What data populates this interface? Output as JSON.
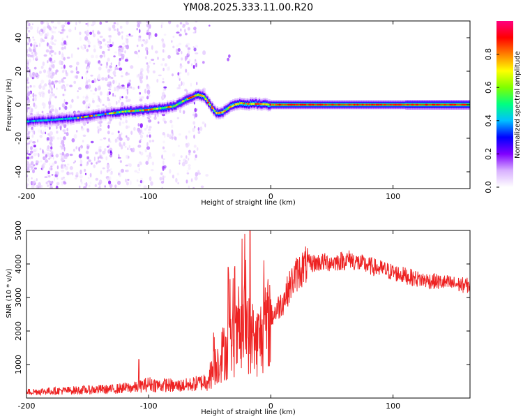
{
  "title": "YM08.2025.333.11.00.R20",
  "chart_data": [
    {
      "type": "heatmap",
      "name": "spectrogram",
      "xlabel": "Height of straight line (km)",
      "ylabel": "Frequency (Hz)",
      "xlim": [
        -200,
        163
      ],
      "ylim": [
        -50,
        50
      ],
      "xticks": [
        -200,
        -100,
        0,
        100
      ],
      "xtick_labels": [
        "-200",
        "-100",
        "0",
        "100"
      ],
      "yticks": [
        -40,
        -20,
        0,
        20,
        40
      ],
      "ytick_labels": [
        "-40",
        "-20",
        "0",
        "20",
        "40"
      ],
      "ridge": {
        "x": [
          -200,
          -180,
          -160,
          -140,
          -120,
          -100,
          -80,
          -70,
          -60,
          -55,
          -50,
          -45,
          -40,
          -35,
          -30,
          -25,
          -20,
          -10,
          0,
          20,
          50,
          100,
          163
        ],
        "y": [
          -10,
          -9,
          -8,
          -6,
          -4,
          -3,
          -1,
          3,
          6,
          5,
          0,
          -5,
          -4.5,
          -2,
          0,
          1,
          0.5,
          0.5,
          0,
          0,
          0,
          0,
          0
        ]
      },
      "colorbar": {
        "label": "Normalized spectral amplitude",
        "range": [
          0,
          1
        ],
        "ticks": [
          0,
          0.2,
          0.4,
          0.6,
          0.8
        ],
        "tick_labels": [
          "0.0",
          "0.2",
          "0.4",
          "0.6",
          "0.8"
        ],
        "colors": [
          "#ffffff",
          "#d8b0ff",
          "#8000ff",
          "#0000ff",
          "#00c0ff",
          "#00ff80",
          "#80ff00",
          "#ffff00",
          "#ff8000",
          "#ff0000",
          "#ff0080"
        ]
      }
    },
    {
      "type": "line",
      "name": "snr",
      "xlabel": "Height of straight line (km)",
      "ylabel": "SNR (10 * v/v)",
      "xlim": [
        -200,
        163
      ],
      "ylim": [
        0,
        5000
      ],
      "xticks": [
        -200,
        -100,
        0,
        100
      ],
      "xtick_labels": [
        "-200",
        "-100",
        "0",
        "100"
      ],
      "yticks": [
        1000,
        2000,
        3000,
        4000,
        5000
      ],
      "ytick_labels": [
        "1000",
        "2000",
        "3000",
        "4000",
        "5000"
      ],
      "color": "#ee2222",
      "series": [
        {
          "name": "SNR",
          "x": [
            -200,
            -190,
            -180,
            -170,
            -160,
            -150,
            -140,
            -130,
            -120,
            -110,
            -100,
            -95,
            -90,
            -85,
            -80,
            -75,
            -70,
            -65,
            -60,
            -55,
            -50,
            -45,
            -40,
            -35,
            -30,
            -25,
            -20,
            -18,
            -15,
            -10,
            -5,
            0,
            5,
            10,
            15,
            20,
            25,
            30,
            40,
            50,
            60,
            65,
            70,
            80,
            90,
            100,
            110,
            120,
            130,
            140,
            150,
            163
          ],
          "y": [
            180,
            200,
            210,
            220,
            230,
            240,
            260,
            260,
            300,
            320,
            420,
            400,
            370,
            400,
            350,
            370,
            380,
            400,
            440,
            480,
            650,
            1000,
            1300,
            1500,
            1700,
            1800,
            2300,
            1900,
            1500,
            1750,
            2000,
            2400,
            2650,
            2900,
            3300,
            3650,
            3850,
            4000,
            4050,
            4050,
            4100,
            4150,
            4050,
            3950,
            3850,
            3750,
            3650,
            3550,
            3500,
            3450,
            3400,
            3350
          ]
        }
      ]
    }
  ]
}
